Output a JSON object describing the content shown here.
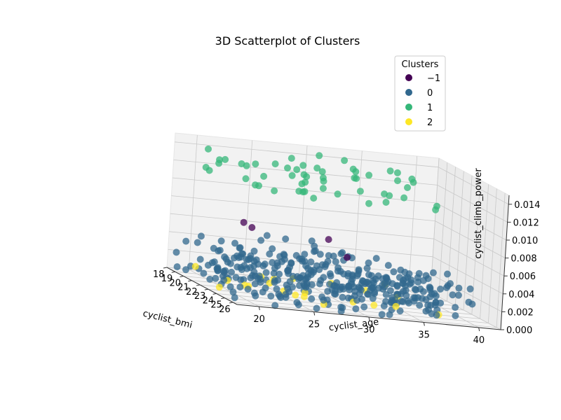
{
  "chart_data": {
    "type": "scatter",
    "title": "3D Scatterplot of Clusters",
    "xlabel": "cyclist_bmi",
    "ylabel": "cyclist_age",
    "zlabel": "cyclist_climb_power",
    "x_ticks": [
      "18",
      "19",
      "20",
      "21",
      "22",
      "23",
      "24",
      "25",
      "26"
    ],
    "y_ticks": [
      "20",
      "25",
      "30",
      "35",
      "40"
    ],
    "z_ticks": [
      "0.000",
      "0.002",
      "0.004",
      "0.006",
      "0.008",
      "0.010",
      "0.012",
      "0.014"
    ],
    "xlim": [
      18,
      26.5
    ],
    "ylim": [
      18,
      42
    ],
    "zlim": [
      0,
      0.015
    ],
    "legend": {
      "title": "Clusters",
      "position": "top-right",
      "entries": [
        {
          "label": "−1",
          "color": "#440154"
        },
        {
          "label": "0",
          "color": "#31688e"
        },
        {
          "label": "1",
          "color": "#35b779"
        },
        {
          "label": "2",
          "color": "#fde725"
        }
      ]
    },
    "series": [
      {
        "name": "−1",
        "color": "#440154",
        "points": [
          [
            21.5,
            22,
            0.0072
          ],
          [
            21.2,
            23,
            0.0066
          ],
          [
            23.5,
            30,
            0.0052
          ],
          [
            22.5,
            29,
            0.0066
          ]
        ]
      },
      {
        "name": "0",
        "color": "#31688e",
        "points": "generated"
      },
      {
        "name": "1",
        "color": "#35b779",
        "points": "generated"
      },
      {
        "name": "2",
        "color": "#fde725",
        "points": "generated"
      }
    ]
  }
}
